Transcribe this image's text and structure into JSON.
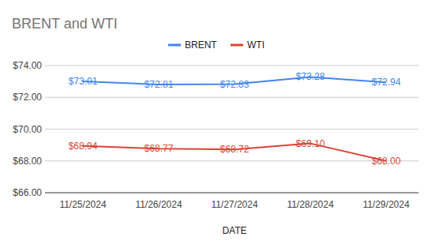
{
  "chart_data": {
    "type": "line",
    "title": "BRENT and WTI",
    "x_label": "DATE",
    "categories": [
      "11/25/2024",
      "11/26/2024",
      "11/27/2024",
      "11/28/2024",
      "11/29/2024"
    ],
    "series": [
      {
        "name": "BRENT",
        "color": "#4285f4",
        "values": [
          73.01,
          72.81,
          72.83,
          73.28,
          72.94
        ],
        "value_labels": [
          "$73.01",
          "$72.81",
          "$72.83",
          "$73.28",
          "$72.94"
        ]
      },
      {
        "name": "WTI",
        "color": "#db4437",
        "values": [
          68.94,
          68.77,
          68.72,
          69.1,
          68.0
        ],
        "value_labels": [
          "$68.94",
          "$68.77",
          "$68.72",
          "$69.10",
          "$68.00"
        ]
      }
    ],
    "ylim": [
      66,
      74
    ],
    "yticks": [
      {
        "value": 66,
        "label": "$66.00"
      },
      {
        "value": 68,
        "label": "$68.00"
      },
      {
        "value": 70,
        "label": "$70.00"
      },
      {
        "value": 72,
        "label": "$72.00"
      },
      {
        "value": 74,
        "label": "$74.00"
      }
    ],
    "grid": true,
    "legend": "top",
    "data_labels": true
  }
}
